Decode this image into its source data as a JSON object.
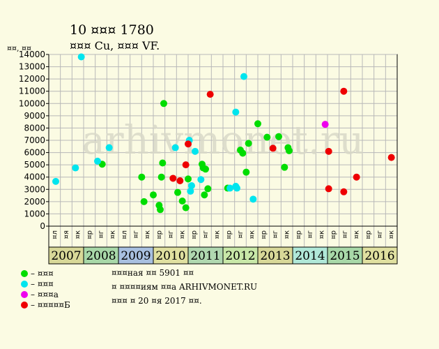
{
  "header": {
    "title": "10 ¤¤¤ 1780",
    "subtitle": "¤¤¤ Cu, ¤¤¤ VF."
  },
  "watermark": "arhivmonet.ru",
  "chart_data": {
    "type": "scatter",
    "ylabel": "¤¤, ¤¤",
    "ylim": [
      0,
      14000
    ],
    "y_ticks": [
      0,
      1000,
      2000,
      3000,
      4000,
      5000,
      6000,
      7000,
      8000,
      9000,
      10000,
      11000,
      12000,
      13000,
      14000
    ],
    "grid": true,
    "quarter_labels": [
      "¤л",
      "¤я",
      "¤к",
      "¤р",
      "¤г",
      "¤к",
      "¤л",
      "¤г",
      "¤к",
      "¤р",
      "¤г",
      "¤к",
      "¤р",
      "¤г",
      "¤к",
      "¤р",
      "¤г",
      "¤к",
      "¤р",
      "¤г",
      "¤к",
      "¤р",
      "¤г",
      "¤к",
      "¤р",
      "¤г",
      "¤к",
      "¤р",
      "¤г",
      "¤к"
    ],
    "years": [
      {
        "label": "2007",
        "color": "#d8d898"
      },
      {
        "label": "2008",
        "color": "#a8d8a8"
      },
      {
        "label": "2009",
        "color": "#a8c0e0"
      },
      {
        "label": "2010",
        "color": "#e0e0a0"
      },
      {
        "label": "2011",
        "color": "#b0d8b0"
      },
      {
        "label": "2012",
        "color": "#c8e8a8"
      },
      {
        "label": "2013",
        "color": "#d8d898"
      },
      {
        "label": "2014",
        "color": "#b0e8d8"
      },
      {
        "label": "2015",
        "color": "#a8d8a8"
      },
      {
        "label": "2016",
        "color": "#e0e0a0"
      }
    ],
    "x_unit": "quarter index (0 = first quarter of 2007)",
    "series": [
      {
        "name": "¤ ¤¤¤",
        "color": "#00dd00",
        "points": [
          [
            4.1,
            5050
          ],
          [
            7.5,
            4000
          ],
          [
            7.7,
            2000
          ],
          [
            8.5,
            2550
          ],
          [
            9.0,
            1700
          ],
          [
            9.1,
            1350
          ],
          [
            9.2,
            4000
          ],
          [
            9.3,
            5150
          ],
          [
            9.4,
            10000
          ],
          [
            10.6,
            2750
          ],
          [
            11.0,
            2050
          ],
          [
            11.3,
            1500
          ],
          [
            11.5,
            3850
          ],
          [
            12.7,
            5050
          ],
          [
            12.8,
            4750
          ],
          [
            12.9,
            2550
          ],
          [
            13.0,
            4650
          ],
          [
            13.2,
            3050
          ],
          [
            14.9,
            3100
          ],
          [
            16.0,
            6200
          ],
          [
            16.2,
            5950
          ],
          [
            16.5,
            4400
          ],
          [
            16.7,
            6750
          ],
          [
            17.5,
            8350
          ],
          [
            18.3,
            7250
          ],
          [
            19.3,
            7300
          ],
          [
            19.8,
            4800
          ],
          [
            20.1,
            6400
          ],
          [
            20.2,
            6150
          ]
        ]
      },
      {
        "name": "¤ ¤¤¤",
        "color": "#00e5ee",
        "points": [
          [
            0.1,
            3650
          ],
          [
            1.8,
            4750
          ],
          [
            2.3,
            13800
          ],
          [
            3.7,
            5300
          ],
          [
            4.7,
            6400
          ],
          [
            10.4,
            6400
          ],
          [
            11.6,
            7000
          ],
          [
            11.7,
            2850
          ],
          [
            11.8,
            3300
          ],
          [
            12.1,
            6100
          ],
          [
            12.6,
            3800
          ],
          [
            15.1,
            3100
          ],
          [
            15.6,
            9300
          ],
          [
            15.6,
            3250
          ],
          [
            15.7,
            3100
          ],
          [
            16.3,
            12200
          ],
          [
            17.1,
            2200
          ]
        ]
      },
      {
        "name": "¤ ¤¤¤а",
        "color": "#ee00ee",
        "points": [
          [
            23.3,
            8300
          ]
        ]
      },
      {
        "name": "¤ ¤¤¤¤¤Б",
        "color": "#ee0000",
        "points": [
          [
            10.2,
            3900
          ],
          [
            10.8,
            3700
          ],
          [
            11.3,
            5000
          ],
          [
            11.5,
            6700
          ],
          [
            13.4,
            10750
          ],
          [
            18.8,
            6350
          ],
          [
            23.6,
            6100
          ],
          [
            23.6,
            3050
          ],
          [
            24.9,
            11000
          ],
          [
            24.9,
            2800
          ],
          [
            26.0,
            4000
          ],
          [
            29.0,
            5600
          ]
        ]
      }
    ]
  },
  "legend": [
    {
      "label": "– ¤¤¤",
      "color": "#00dd00"
    },
    {
      "label": "– ¤¤¤",
      "color": "#00e5ee"
    },
    {
      "label": "– ¤¤¤а",
      "color": "#ee00ee"
    },
    {
      "label": "– ¤¤¤¤¤Б",
      "color": "#ee0000"
    }
  ],
  "footer": {
    "line1": "¤¤¤ная ¤¤ 5901 ¤¤",
    "line2": "¤ ¤¤¤¤иям ¤¤а ARHIVMONET.RU",
    "line3": "¤¤¤ ¤ 20 ¤я 2017 ¤¤."
  }
}
